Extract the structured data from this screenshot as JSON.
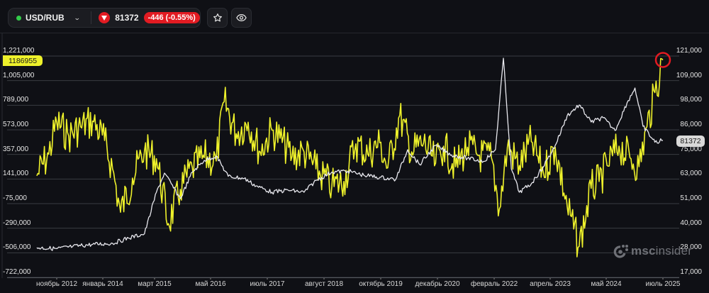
{
  "header": {
    "symbol": "USD/RUB",
    "status_dot_color": "#33cc4a",
    "direction_icon": "triangle-down-icon",
    "last_price": "81372",
    "change": "-446 (-0.55%)",
    "change_color": "#e21b22",
    "buttons": [
      {
        "name": "watchlist-star-button",
        "icon": "star-icon"
      },
      {
        "name": "visibility-eye-button",
        "icon": "eye-icon"
      }
    ]
  },
  "tags": {
    "left_value": "1186955",
    "right_value": "81372"
  },
  "watermark": {
    "bold": "msc",
    "light": "insider"
  },
  "chart_data": {
    "type": "line",
    "title": "USD/RUB",
    "xlabel": "",
    "ylabel": "",
    "grid": true,
    "legend": "none",
    "x_ticks": [
      "ноябрь 2012",
      "январь 2014",
      "март 2015",
      "май 2016",
      "июль 2017",
      "август 2018",
      "октябрь 2019",
      "декабрь 2020",
      "февраль 2022",
      "апрель 2023",
      "май 2024",
      "июль 2025"
    ],
    "y_left_ticks": [
      "1,221,000",
      "1,005,000",
      "789,000",
      "573,000",
      "357,000",
      "141,000",
      "-75,000",
      "-290,000",
      "-506,000",
      "-722,000"
    ],
    "y_right_ticks": [
      "121,000",
      "109,000",
      "98,000",
      "86,000",
      "75,000",
      "63,000",
      "51,000",
      "40,000",
      "28,000",
      "17,000"
    ],
    "ylim_left": [
      -722000,
      1221000
    ],
    "ylim_right": [
      17000,
      121000
    ],
    "annotations": [
      {
        "type": "circle",
        "color": "#e21b22",
        "at_series": "Yellow series (left axis)",
        "value": 1186955,
        "x": "июль 2025"
      },
      {
        "type": "last-value-tag",
        "series": "Yellow series (left axis)",
        "value": "1186955"
      },
      {
        "type": "last-value-tag",
        "series": "USD/RUB (right axis)",
        "value": "81372"
      }
    ],
    "series": [
      {
        "name": "Yellow series (left axis)",
        "axis": "left",
        "color": "#eef12b",
        "x": [
          "2012-06",
          "2012-09",
          "2012-11",
          "2013-02",
          "2013-05",
          "2013-08",
          "2013-11",
          "2014-01",
          "2014-03",
          "2014-06",
          "2014-09",
          "2014-12",
          "2015-03",
          "2015-06",
          "2015-09",
          "2015-12",
          "2016-03",
          "2016-05",
          "2016-08",
          "2016-11",
          "2017-02",
          "2017-05",
          "2017-07",
          "2017-10",
          "2018-01",
          "2018-04",
          "2018-08",
          "2018-11",
          "2019-02",
          "2019-05",
          "2019-08",
          "2019-10",
          "2020-01",
          "2020-04",
          "2020-07",
          "2020-10",
          "2020-12",
          "2021-03",
          "2021-06",
          "2021-09",
          "2021-12",
          "2022-02",
          "2022-04",
          "2022-07",
          "2022-10",
          "2023-01",
          "2023-04",
          "2023-07",
          "2023-10",
          "2024-01",
          "2024-03",
          "2024-05",
          "2024-08",
          "2024-11",
          "2025-01",
          "2025-03",
          "2025-05",
          "2025-07"
        ],
        "values": [
          170000,
          360000,
          640000,
          520000,
          600000,
          650000,
          480000,
          230000,
          -150000,
          150000,
          390000,
          320000,
          -250000,
          50000,
          240000,
          330000,
          300000,
          820000,
          540000,
          640000,
          380000,
          570000,
          500000,
          340000,
          380000,
          230000,
          80000,
          120000,
          450000,
          360000,
          460000,
          240000,
          700000,
          380000,
          460000,
          280000,
          430000,
          250000,
          420000,
          350000,
          330000,
          -120000,
          420000,
          260000,
          470000,
          200000,
          420000,
          -100000,
          -450000,
          60000,
          120000,
          260000,
          430000,
          320000,
          250000,
          600000,
          900000,
          1186955
        ]
      },
      {
        "name": "USD/RUB (right axis)",
        "axis": "right",
        "color": "#e8e8ee",
        "x": [
          "2012-06",
          "2012-11",
          "2013-03",
          "2013-08",
          "2014-01",
          "2014-05",
          "2014-09",
          "2014-12",
          "2015-02",
          "2015-06",
          "2015-09",
          "2015-12",
          "2016-03",
          "2016-06",
          "2016-10",
          "2017-01",
          "2017-05",
          "2017-09",
          "2018-01",
          "2018-04",
          "2018-08",
          "2018-12",
          "2019-04",
          "2019-08",
          "2019-12",
          "2020-03",
          "2020-06",
          "2020-10",
          "2021-02",
          "2021-06",
          "2021-10",
          "2022-01",
          "2022-03",
          "2022-05",
          "2022-07",
          "2022-10",
          "2023-01",
          "2023-04",
          "2023-07",
          "2023-10",
          "2024-01",
          "2024-04",
          "2024-07",
          "2024-10",
          "2024-12",
          "2025-02",
          "2025-05",
          "2025-07"
        ],
        "values": [
          31000,
          30500,
          31500,
          32500,
          33000,
          35500,
          37500,
          57000,
          66000,
          54000,
          66500,
          72000,
          74000,
          64500,
          63500,
          60000,
          57000,
          58000,
          57000,
          62500,
          66500,
          67000,
          65000,
          64000,
          63000,
          77000,
          70000,
          79000,
          74500,
          73000,
          71500,
          77000,
          120000,
          68000,
          57000,
          61000,
          69000,
          79000,
          93000,
          98000,
          90000,
          92000,
          86000,
          99000,
          106000,
          88000,
          80500,
          81372
        ]
      }
    ]
  }
}
